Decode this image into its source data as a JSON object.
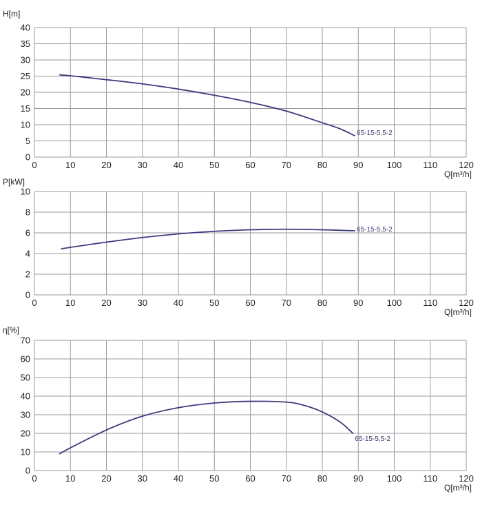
{
  "colors": {
    "curve": "#3b3a7e",
    "grid": "#9a9a9a",
    "text": "#222222",
    "background": "#ffffff"
  },
  "chart_data": [
    {
      "type": "line",
      "ylabel": "H[m]",
      "xlabel": "Q[m³/h]",
      "xlim": [
        0,
        120
      ],
      "ylim": [
        0,
        40
      ],
      "x_ticks": [
        0,
        10,
        20,
        30,
        40,
        50,
        60,
        70,
        80,
        90,
        100,
        110,
        120
      ],
      "y_ticks": [
        0,
        5,
        10,
        15,
        20,
        25,
        30,
        35,
        40
      ],
      "grid": true,
      "series": [
        {
          "name": "65-15-5,5-2",
          "x": [
            7,
            10,
            20,
            30,
            40,
            50,
            60,
            70,
            80,
            85,
            89
          ],
          "y": [
            25.4,
            25.1,
            23.9,
            22.6,
            21.0,
            19.1,
            16.9,
            14.2,
            10.6,
            8.7,
            6.6
          ]
        }
      ]
    },
    {
      "type": "line",
      "ylabel": "P[kW]",
      "xlabel": "Q[m³/h]",
      "xlim": [
        0,
        120
      ],
      "ylim": [
        0,
        10
      ],
      "x_ticks": [
        0,
        10,
        20,
        30,
        40,
        50,
        60,
        70,
        80,
        90,
        100,
        110,
        120
      ],
      "y_ticks": [
        0,
        2,
        4,
        6,
        8,
        10
      ],
      "grid": true,
      "series": [
        {
          "name": "65-15-5,5-2",
          "x": [
            7.5,
            10,
            20,
            30,
            40,
            50,
            60,
            70,
            80,
            89
          ],
          "y": [
            4.45,
            4.6,
            5.1,
            5.55,
            5.9,
            6.15,
            6.3,
            6.35,
            6.3,
            6.2
          ]
        }
      ]
    },
    {
      "type": "line",
      "ylabel": "η[%]",
      "xlabel": "Q[m³/h]",
      "xlim": [
        0,
        120
      ],
      "ylim": [
        0,
        70
      ],
      "x_ticks": [
        0,
        10,
        20,
        30,
        40,
        50,
        60,
        70,
        80,
        90,
        100,
        110,
        120
      ],
      "y_ticks": [
        0,
        10,
        20,
        30,
        40,
        50,
        60,
        70
      ],
      "grid": true,
      "series": [
        {
          "name": "65-15-5,5-2",
          "x": [
            7,
            10,
            20,
            30,
            40,
            50,
            60,
            70,
            75,
            80,
            85,
            88.5
          ],
          "y": [
            9,
            12.2,
            21.8,
            29.2,
            33.8,
            36.3,
            37.2,
            36.8,
            35,
            31.5,
            26,
            20
          ]
        }
      ]
    }
  ]
}
